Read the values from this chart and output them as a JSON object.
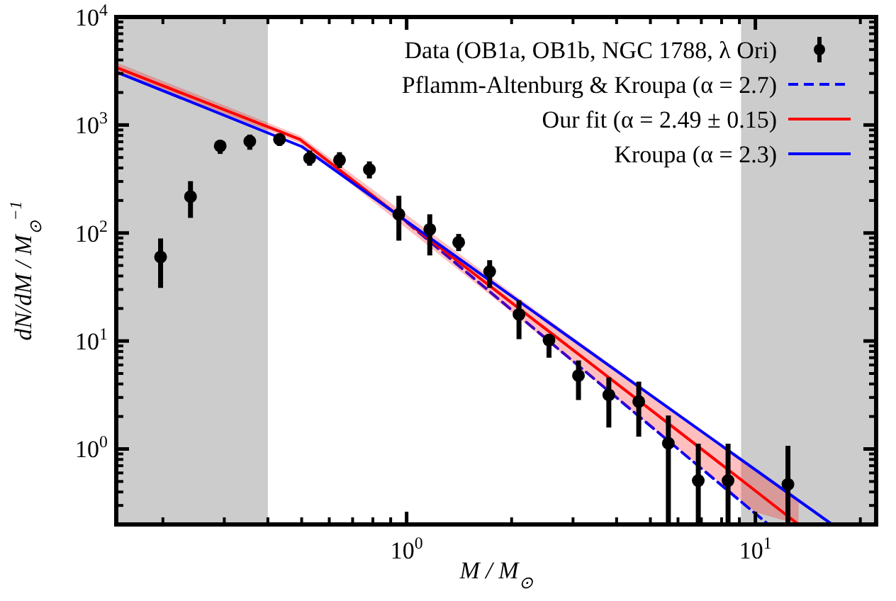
{
  "chart_data": {
    "type": "scatter",
    "xlabel": "M / M$_{⊙}$",
    "ylabel": "dN/dM / M$_{⊙}$$^{−1}$",
    "log": "xy",
    "legend": "top right",
    "grid": false,
    "xlim": [
      0.147,
      22.2
    ],
    "ylim": [
      0.2,
      10000
    ],
    "xticks": [
      {
        "value": 0.2,
        "label": null
      },
      {
        "value": 0.3,
        "label": null
      },
      {
        "value": 0.4,
        "label": null
      },
      {
        "value": 0.5,
        "label": null
      },
      {
        "value": 0.6,
        "label": null
      },
      {
        "value": 0.7,
        "label": null
      },
      {
        "value": 0.8,
        "label": null
      },
      {
        "value": 0.9,
        "label": null
      },
      {
        "value": 1,
        "label": "10$^{0}$"
      },
      {
        "value": 2,
        "label": null
      },
      {
        "value": 3,
        "label": null
      },
      {
        "value": 4,
        "label": null
      },
      {
        "value": 5,
        "label": null
      },
      {
        "value": 6,
        "label": null
      },
      {
        "value": 7,
        "label": null
      },
      {
        "value": 8,
        "label": null
      },
      {
        "value": 9,
        "label": null
      },
      {
        "value": 10,
        "label": "10$^{1}$"
      },
      {
        "value": 20,
        "label": null
      }
    ],
    "yticks": [
      {
        "value": 0.2,
        "label": null
      },
      {
        "value": 0.3,
        "label": null
      },
      {
        "value": 0.4,
        "label": null
      },
      {
        "value": 0.5,
        "label": null
      },
      {
        "value": 0.6,
        "label": null
      },
      {
        "value": 0.7,
        "label": null
      },
      {
        "value": 0.8,
        "label": null
      },
      {
        "value": 0.9,
        "label": null
      },
      {
        "value": 1,
        "label": "10$^{0}$"
      },
      {
        "value": 2,
        "label": null
      },
      {
        "value": 3,
        "label": null
      },
      {
        "value": 4,
        "label": null
      },
      {
        "value": 5,
        "label": null
      },
      {
        "value": 6,
        "label": null
      },
      {
        "value": 7,
        "label": null
      },
      {
        "value": 8,
        "label": null
      },
      {
        "value": 9,
        "label": null
      },
      {
        "value": 10,
        "label": "10$^{1}$"
      },
      {
        "value": 20,
        "label": null
      },
      {
        "value": 30,
        "label": null
      },
      {
        "value": 40,
        "label": null
      },
      {
        "value": 50,
        "label": null
      },
      {
        "value": 60,
        "label": null
      },
      {
        "value": 70,
        "label": null
      },
      {
        "value": 80,
        "label": null
      },
      {
        "value": 90,
        "label": null
      },
      {
        "value": 100,
        "label": "10$^{2}$"
      },
      {
        "value": 200,
        "label": null
      },
      {
        "value": 300,
        "label": null
      },
      {
        "value": 400,
        "label": null
      },
      {
        "value": 500,
        "label": null
      },
      {
        "value": 600,
        "label": null
      },
      {
        "value": 700,
        "label": null
      },
      {
        "value": 800,
        "label": null
      },
      {
        "value": 900,
        "label": null
      },
      {
        "value": 1000,
        "label": "10$^{3}$"
      },
      {
        "value": 2000,
        "label": null
      },
      {
        "value": 3000,
        "label": null
      },
      {
        "value": 4000,
        "label": null
      },
      {
        "value": 5000,
        "label": null
      },
      {
        "value": 6000,
        "label": null
      },
      {
        "value": 7000,
        "label": null
      },
      {
        "value": 8000,
        "label": null
      },
      {
        "value": 9000,
        "label": null
      },
      {
        "value": 10000,
        "label": "10$^{4}$"
      }
    ],
    "bands": [
      {
        "axis": "x",
        "from": 0.147,
        "to": 0.4,
        "color": "#cccccc"
      },
      {
        "axis": "x",
        "from": 9.1,
        "to": 22.2,
        "color": "#cccccc"
      }
    ],
    "series": [
      {
        "name": "Data (OB1a, OB1b, NGC 1788, λ Ori)",
        "marker": "circle",
        "color": "#000000",
        "x": [
          0.197,
          0.24,
          0.292,
          0.355,
          0.432,
          0.527,
          0.642,
          0.782,
          0.95,
          1.165,
          1.41,
          1.73,
          2.1,
          2.56,
          3.11,
          3.8,
          4.63,
          5.63,
          6.86,
          8.35,
          12.4
        ],
        "values": [
          60,
          217,
          640,
          707,
          736,
          493,
          474,
          387,
          149,
          108,
          82,
          44,
          17.6,
          10.2,
          4.78,
          3.17,
          2.75,
          1.13,
          0.51,
          0.51,
          0.47
        ],
        "errors": [
          [
            31,
            89
          ],
          [
            138,
            302
          ],
          [
            540,
            725
          ],
          [
            590,
            815
          ],
          [
            640,
            830
          ],
          [
            420,
            580
          ],
          [
            400,
            560
          ],
          [
            320,
            460
          ],
          [
            85,
            221
          ],
          [
            62,
            149
          ],
          [
            68,
            98
          ],
          [
            31,
            56
          ],
          [
            10.4,
            23.8
          ],
          [
            7,
            11.5
          ],
          [
            2.84,
            6.6
          ],
          [
            1.58,
            4.6
          ],
          [
            1.3,
            4.2
          ],
          [
            0.2,
            2.04
          ],
          [
            0.2,
            1.12
          ],
          [
            0.2,
            1.12
          ],
          [
            0.2,
            1.07
          ]
        ]
      },
      {
        "name": "Pflamm-Altenburg & Kroupa (α = 2.7)",
        "type": "line",
        "color": "#0000ff",
        "line_style": "dashed",
        "marker": "none",
        "x": [
          1,
          10.9
        ],
        "values": [
          126,
          0.2
        ]
      },
      {
        "name": "Our fit (α = 2.49 ± 0.15)",
        "type": "line",
        "color": "#ff0000",
        "line_style": "solid",
        "marker": "none",
        "x": [
          0.147,
          0.494,
          2,
          5,
          10,
          13.3
        ],
        "values": [
          3410,
          736,
          22.6,
          2.32,
          0.41,
          0.2
        ],
        "lower": [
          3100,
          680,
          18.4,
          1.64,
          0.26,
          0.2
        ],
        "upper": [
          3800,
          800,
          28,
          3.27,
          0.65,
          0.33
        ]
      },
      {
        "name": "Kroupa (α = 2.3)",
        "type": "line",
        "color": "#0000ff",
        "line_style": "solid",
        "marker": "none",
        "x": [
          0.147,
          0.5,
          16.6
        ],
        "values": [
          3100,
          632,
          0.2
        ]
      }
    ]
  }
}
